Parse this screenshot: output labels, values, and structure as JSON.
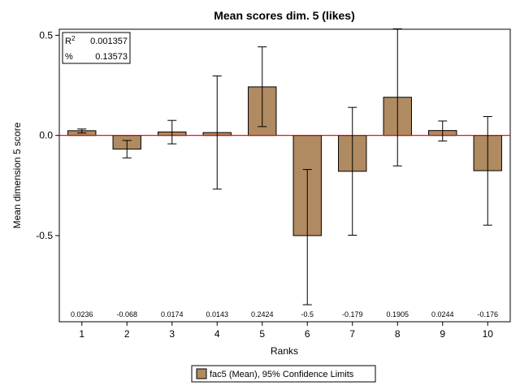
{
  "chart_data": {
    "type": "bar",
    "title": "Mean scores dim. 5 (likes)",
    "xlabel": "Ranks",
    "ylabel": "Mean dimension 5 score",
    "categories": [
      "1",
      "2",
      "3",
      "4",
      "5",
      "6",
      "7",
      "8",
      "9",
      "10"
    ],
    "series": [
      {
        "name": "fac5 (Mean), 95% Confidence Limits",
        "values": [
          0.0236,
          -0.068,
          0.0174,
          0.0143,
          0.2424,
          -0.5,
          -0.179,
          0.1905,
          0.0244,
          -0.176
        ],
        "lower": [
          0.012,
          -0.112,
          -0.042,
          -0.268,
          0.044,
          -0.845,
          -0.498,
          -0.152,
          -0.028,
          -0.448
        ],
        "upper": [
          0.032,
          -0.025,
          0.075,
          0.297,
          0.442,
          -0.17,
          0.14,
          0.532,
          0.072,
          0.094
        ]
      }
    ],
    "data_labels": [
      "0.0236",
      "-0.068",
      "0.0174",
      "0.0143",
      "0.2424",
      "-0.5",
      "-0.179",
      "0.1905",
      "0.0244",
      "-0.176"
    ],
    "y_ticks": [
      "0.5",
      "0.0",
      "-0.5"
    ],
    "y_tick_values": [
      0.5,
      0.0,
      -0.5
    ],
    "ylim": [
      -0.93,
      0.53
    ],
    "reference_line": {
      "y": 0,
      "color": "#ff0000"
    },
    "bar_color": "#b08a60",
    "grid": false,
    "legend_position": "bottom",
    "stats": {
      "r2_label": "R",
      "r2_sup": "2",
      "r2_value": "0.001357",
      "pct_label": "%",
      "pct_value": "0.13573"
    }
  }
}
